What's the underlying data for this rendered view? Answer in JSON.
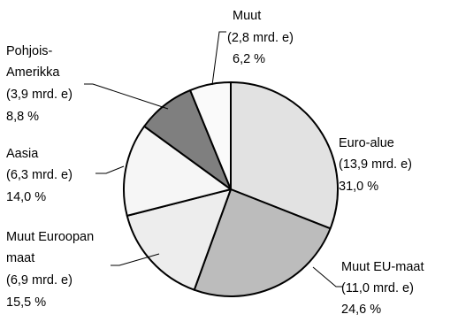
{
  "chart_data": {
    "type": "pie",
    "slices": [
      {
        "label": "Euro-alue",
        "amount": "(13,9 mrd. e)",
        "percent_text": "31,0 %",
        "value": 31.0,
        "color": "#e2e2e2"
      },
      {
        "label": "Muut EU-maat",
        "amount": "(11,0 mrd. e)",
        "percent_text": "24,6 %",
        "value": 24.6,
        "color": "#bcbcbc"
      },
      {
        "label": "Muut Euroopan maat",
        "amount": "(6,9 mrd. e)",
        "percent_text": "15,5 %",
        "value": 15.5,
        "color": "#ededed"
      },
      {
        "label": "Aasia",
        "amount": "(6,3 mrd. e)",
        "percent_text": "14,0 %",
        "value": 14.0,
        "color": "#f6f6f6"
      },
      {
        "label": "Pohjois-Amerikka",
        "amount": "(3,9 mrd. e)",
        "percent_text": "8,8 %",
        "value": 8.8,
        "color": "#7f7f7f"
      },
      {
        "label": "Muut",
        "amount": "(2,8 mrd. e)",
        "percent_text": "6,2 %",
        "value": 6.2,
        "color": "#fafafa"
      }
    ],
    "start": "top",
    "direction": "clockwise",
    "legend": "none"
  },
  "labels": {
    "euro_alue": {
      "line1": "Euro-alue",
      "line2": "(13,9 mrd. e)",
      "line3": "31,0 %"
    },
    "muut_eu_maat": {
      "line1": "Muut EU-maat",
      "line2": "(11,0 mrd. e)",
      "line3": "24,6 %"
    },
    "muut_euroopan_maat": {
      "line1": "Muut Euroopan",
      "line2": "maat",
      "line3": "(6,9 mrd. e)",
      "line4": "15,5 %"
    },
    "aasia": {
      "line1": "Aasia",
      "line2": "(6,3 mrd. e)",
      "line3": "14,0 %"
    },
    "pohjois_amerikka": {
      "line1": "Pohjois-",
      "line2": "Amerikka",
      "line3": "(3,9 mrd. e)",
      "line4": "8,8 %"
    },
    "muut": {
      "line1": "Muut",
      "line2": "(2,8 mrd. e)",
      "line3": "6,2 %"
    }
  }
}
